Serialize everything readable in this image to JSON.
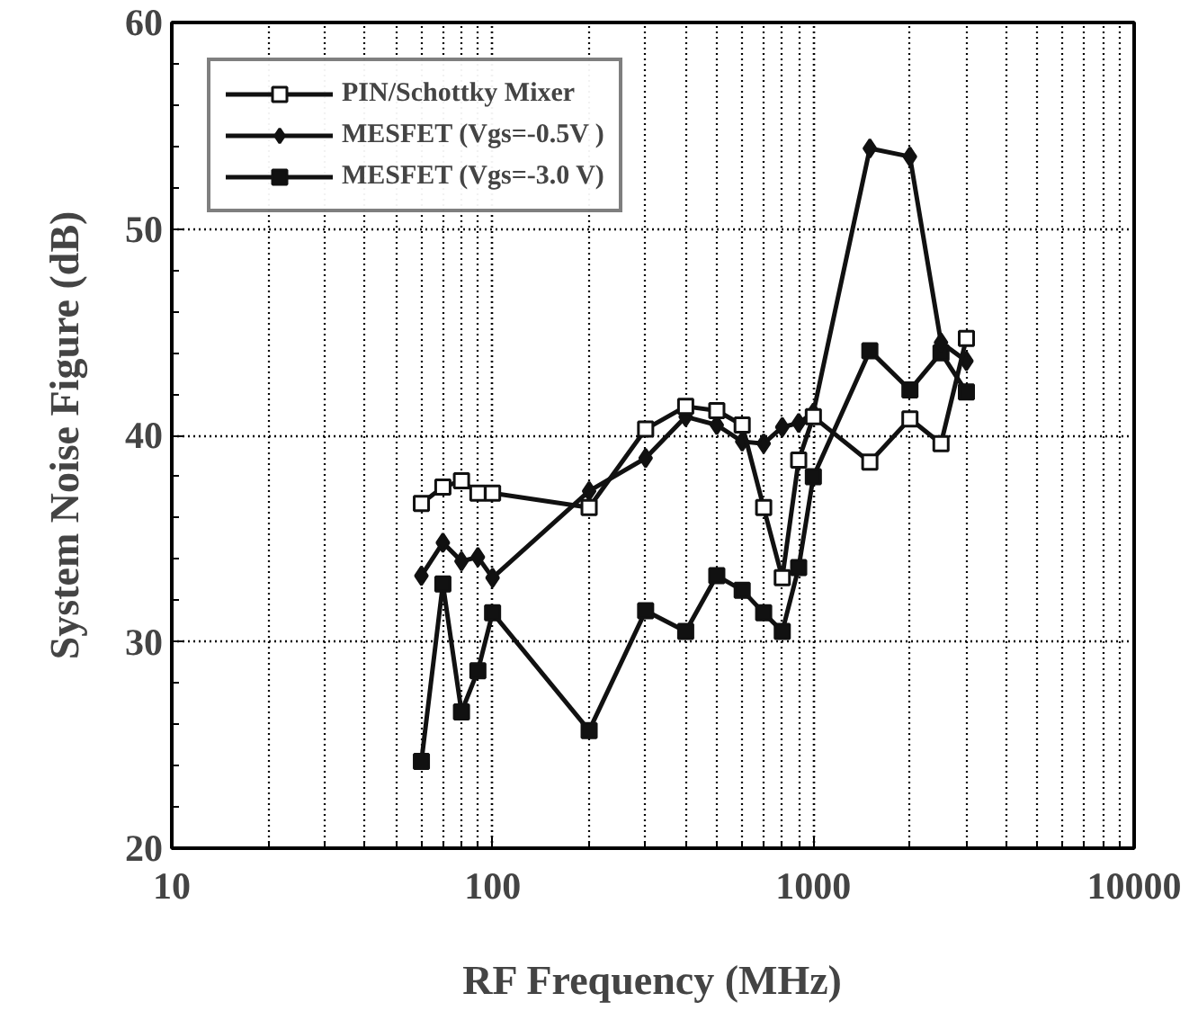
{
  "chart_data": {
    "type": "line",
    "xlabel": "RF Frequency (MHz)",
    "ylabel": "System Noise Figure (dB)",
    "log": "x",
    "xlim": [
      10,
      10000
    ],
    "ylim": [
      20,
      60
    ],
    "xticks": [
      10,
      100,
      1000,
      10000
    ],
    "yticks": [
      20,
      30,
      40,
      50,
      60
    ],
    "grid": true,
    "legend": "top left",
    "line_style": "solid",
    "x": [
      60,
      70,
      80,
      90,
      100,
      200,
      300,
      400,
      500,
      600,
      700,
      800,
      900,
      1000,
      1500,
      2000,
      2500,
      3000
    ],
    "series": [
      {
        "name": "PIN/Schottky Mixer",
        "color": "#111111",
        "marker": "square",
        "values": [
          36.7,
          37.5,
          37.8,
          37.2,
          37.2,
          36.5,
          40.3,
          41.4,
          41.2,
          40.5,
          36.5,
          33.1,
          38.8,
          40.9,
          38.7,
          40.8,
          39.6,
          44.7
        ]
      },
      {
        "name": "MESFET (Vgs=-0.5V )",
        "color": "#111111",
        "marker": "diamond",
        "values": [
          33.2,
          34.8,
          33.9,
          34.1,
          33.1,
          37.3,
          38.9,
          40.9,
          40.5,
          39.7,
          39.6,
          40.4,
          40.6,
          41.1,
          53.9,
          53.5,
          44.5,
          43.6
        ]
      },
      {
        "name": "MESFET (Vgs=-3.0 V)",
        "color": "#111111",
        "marker": "square",
        "values": [
          24.2,
          32.8,
          26.6,
          28.6,
          31.4,
          25.7,
          31.5,
          30.5,
          33.2,
          32.5,
          31.4,
          30.5,
          33.6,
          38.0,
          44.1,
          42.2,
          44.0,
          42.1
        ]
      }
    ]
  }
}
